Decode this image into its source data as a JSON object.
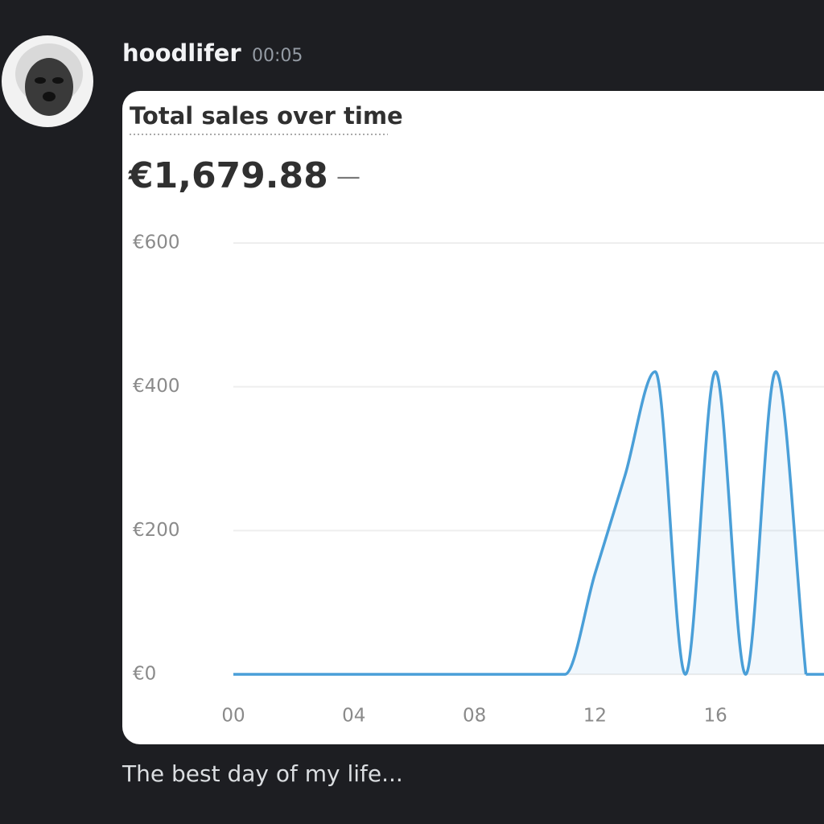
{
  "message": {
    "username": "hoodlifer",
    "time": "00:05",
    "text": "The best day of my life..."
  },
  "chart_data": {
    "type": "line",
    "title": "Total sales over time",
    "total": "€1,679.88",
    "comparison": "—",
    "x": [
      0,
      1,
      2,
      3,
      4,
      5,
      6,
      7,
      8,
      9,
      10,
      11,
      12,
      13,
      14,
      15,
      16,
      17,
      18,
      19
    ],
    "series": [
      {
        "name": "Total sales",
        "color": "#4a9fd8",
        "values": [
          0,
          0,
          0,
          0,
          0,
          0,
          0,
          0,
          0,
          0,
          0,
          0,
          140,
          277,
          421,
          0,
          421,
          0,
          421,
          0
        ]
      }
    ],
    "xlim": [
      0,
      19.6
    ],
    "xticks": [
      {
        "value": 0,
        "label": "00"
      },
      {
        "value": 4,
        "label": "04"
      },
      {
        "value": 8,
        "label": "08"
      },
      {
        "value": 12,
        "label": "12"
      },
      {
        "value": 16,
        "label": "16"
      }
    ],
    "ylim": [
      0,
      600
    ],
    "yticks": [
      {
        "value": 0,
        "label": "€0"
      },
      {
        "value": 200,
        "label": "€200"
      },
      {
        "value": 400,
        "label": "€400"
      },
      {
        "value": 600,
        "label": "€600"
      }
    ],
    "grid": true
  }
}
